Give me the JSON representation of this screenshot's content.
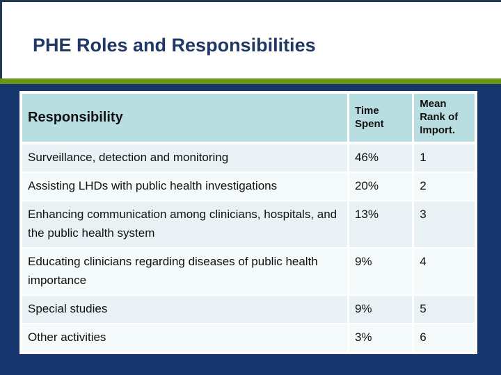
{
  "slide": {
    "title": "PHE Roles and Responsibilities"
  },
  "colors": {
    "background_navy": "#17366e",
    "frame_line": "#21394e",
    "accent_green_bar": "#6a9414",
    "title_text": "#1f3864",
    "table_header_bg": "#b9dee2",
    "row_band_dark": "#e9f1f4",
    "row_band_light": "#f4f9fa",
    "body_text": "#111111"
  },
  "table": {
    "headers": [
      "Responsibility",
      "Time Spent",
      "Mean Rank of Import."
    ],
    "rows": [
      {
        "responsibility": "Surveillance, detection and monitoring",
        "time_spent": "46%",
        "mean_rank": "1"
      },
      {
        "responsibility": "Assisting LHDs with public health investigations",
        "time_spent": "20%",
        "mean_rank": "2"
      },
      {
        "responsibility": "Enhancing communication among clinicians, hospitals, and the public health system",
        "time_spent": "13%",
        "mean_rank": "3"
      },
      {
        "responsibility": "Educating clinicians regarding diseases of public health importance",
        "time_spent": "9%",
        "mean_rank": "4"
      },
      {
        "responsibility": "Special studies",
        "time_spent": "9%",
        "mean_rank": "5"
      },
      {
        "responsibility": "Other activities",
        "time_spent": "3%",
        "mean_rank": "6"
      }
    ]
  }
}
